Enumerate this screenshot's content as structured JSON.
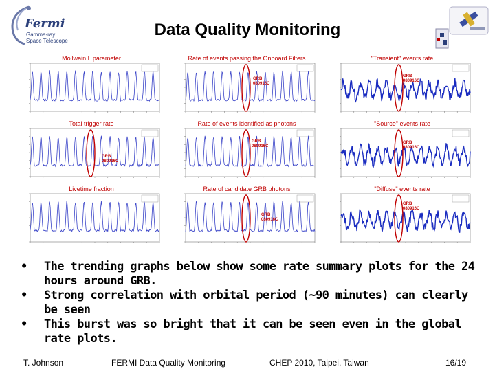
{
  "slide": {
    "title": "Data Quality Monitoring",
    "logo_left": {
      "word": "Fermi",
      "line1": "Gamma-ray",
      "line2": "Space Telescope"
    },
    "panels": [
      {
        "title": "Mollwain L parameter",
        "annotation": []
      },
      {
        "title": "Rate of events passing the Onboard Filters",
        "annotation": [
          "GRB",
          "080916C"
        ]
      },
      {
        "title": "\"Transient\" events rate",
        "annotation": [
          "GRB",
          "080916C"
        ]
      },
      {
        "title": "Total trigger rate",
        "annotation": [
          "GRB",
          "080916C"
        ]
      },
      {
        "title": "Rate of events identified as photons",
        "annotation": [
          "GRB",
          "080916C"
        ]
      },
      {
        "title": "\"Source\" events rate",
        "annotation": [
          "GRB",
          "080916C"
        ]
      },
      {
        "title": "Livetime fraction",
        "annotation": []
      },
      {
        "title": "Rate of candidate GRB photons",
        "annotation": [
          "GRB",
          "080916C"
        ]
      },
      {
        "title": "\"Diffuse\" events rate",
        "annotation": [
          "GRB",
          "080916C"
        ]
      }
    ],
    "bullets": [
      "The trending graphs below show some rate summary plots for the 24 hours around GRB.",
      "Strong correlation with orbital period (~90 minutes) can clearly be seen",
      "This burst was so bright that it can be seen even in the global rate plots."
    ],
    "bullet_symbol": "•",
    "footer": {
      "author": "T. Johnson",
      "talk": "FERMI Data Quality Monitoring",
      "venue": "CHEP 2010, Taipei, Taiwan",
      "page": "16/19"
    }
  }
}
